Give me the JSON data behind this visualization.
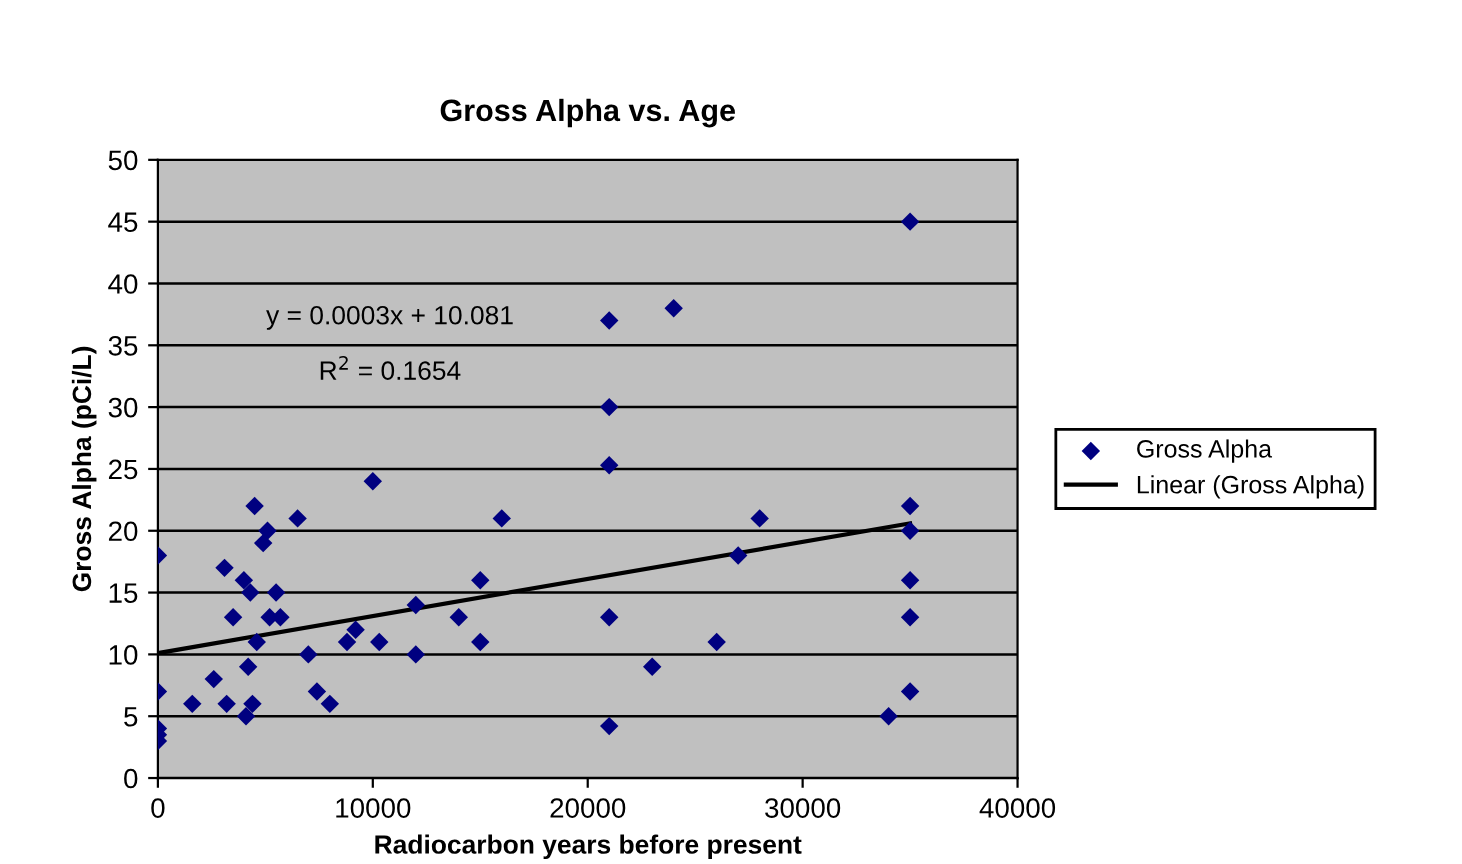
{
  "chart_data": {
    "type": "scatter",
    "title": "Gross Alpha vs. Age",
    "xlabel": "Radiocarbon years before present",
    "ylabel": "Gross Alpha (pCi/L)",
    "annotations": [
      "y = 0.0003x + 10.081",
      "R$^{2}$ = 0.1654"
    ],
    "xlim": [
      0,
      40000
    ],
    "xticks": [
      0,
      10000,
      20000,
      30000,
      40000
    ],
    "ylim": [
      0,
      50
    ],
    "yticks": [
      0,
      5,
      10,
      15,
      20,
      25,
      30,
      35,
      40,
      45,
      50
    ],
    "grid": "y",
    "legend": "right",
    "marker": "diamond",
    "series": [
      {
        "name": "Gross Alpha",
        "color": "#000080",
        "x": [
          0,
          0,
          0,
          0,
          0,
          1600,
          2600,
          3100,
          3200,
          3500,
          4000,
          4100,
          4200,
          4300,
          4400,
          4500,
          4600,
          4900,
          5100,
          5200,
          5500,
          5700,
          6500,
          7000,
          7400,
          8000,
          8800,
          9200,
          10000,
          10300,
          12000,
          12000,
          14000,
          15000,
          15000,
          16000,
          21000,
          21000,
          21000,
          21000,
          21000,
          23000,
          24000,
          26000,
          27000,
          28000,
          34000,
          35000,
          35000,
          35000,
          35000,
          35000,
          35000
        ],
        "values": [
          18,
          7,
          4,
          3.5,
          3,
          6,
          8,
          17,
          6,
          13,
          16,
          5,
          9,
          15,
          6,
          22,
          11,
          19,
          20,
          13,
          15,
          13,
          21,
          10,
          7,
          6,
          11,
          12,
          24,
          11,
          14,
          10,
          13,
          16,
          11,
          21,
          37,
          30,
          25.3,
          13,
          4.2,
          9,
          38,
          11,
          18,
          21,
          5,
          45,
          22,
          20,
          16,
          13,
          7
        ]
      },
      {
        "name": "Linear (Gross Alpha)",
        "type": "line",
        "color": "#000000",
        "marker": "none",
        "line_style": "solid",
        "x": [
          0,
          35000
        ],
        "values": [
          10.1,
          20.6
        ]
      }
    ]
  }
}
